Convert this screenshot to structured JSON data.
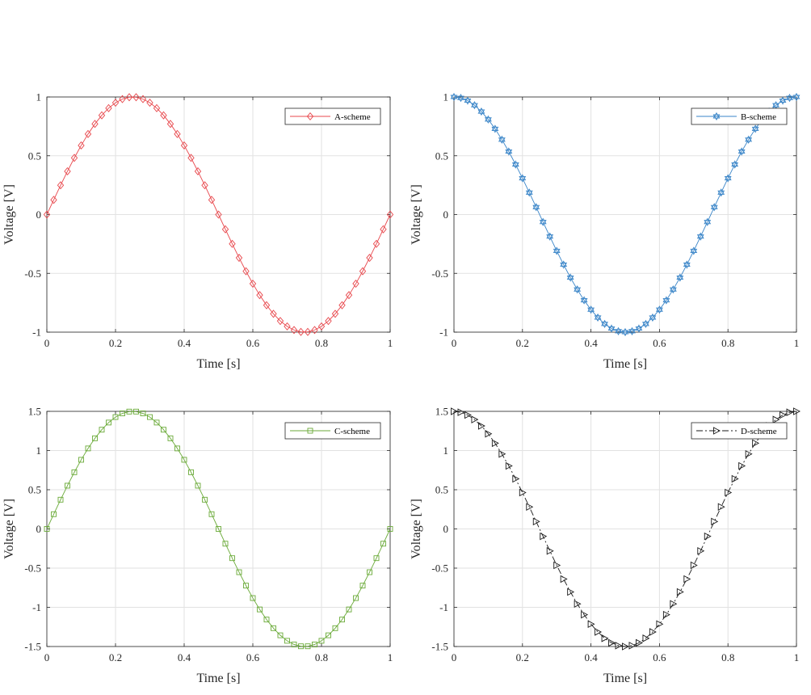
{
  "panels": [
    {
      "legend": "A-scheme",
      "xlabel": "Time [s]",
      "ylabel": "Voltage [V]",
      "color": "#e8474c",
      "marker": "diamond",
      "line": "solid"
    },
    {
      "legend": "B-scheme",
      "xlabel": "Time [s]",
      "ylabel": "Voltage [V]",
      "color": "#3a85c8",
      "marker": "hexagram",
      "line": "solid"
    },
    {
      "legend": "C-scheme",
      "xlabel": "Time [s]",
      "ylabel": "Voltage [V]",
      "color": "#6aaa38",
      "marker": "square",
      "line": "solid"
    },
    {
      "legend": "D-scheme",
      "xlabel": "Time [s]",
      "ylabel": "Voltage [V]",
      "color": "#1a1a1a",
      "marker": "triangle-right",
      "line": "dashdot"
    }
  ],
  "chart_data": [
    {
      "type": "line",
      "xlabel": "Time [s]",
      "ylabel": "Voltage [V]",
      "xlim": [
        0,
        1
      ],
      "ylim": [
        -1,
        1
      ],
      "xticks": [
        "0",
        "0.2",
        "0.4",
        "0.6",
        "0.8",
        "1"
      ],
      "yticks": [
        "-1",
        "-0.5",
        "0",
        "0.5",
        "1"
      ],
      "grid": true,
      "legend_position": "top-right",
      "x": [
        0,
        0.02,
        0.04,
        0.06,
        0.08,
        0.1,
        0.12,
        0.14,
        0.16,
        0.18,
        0.2,
        0.22,
        0.24,
        0.26,
        0.28,
        0.3,
        0.32,
        0.34,
        0.36,
        0.38,
        0.4,
        0.42,
        0.44,
        0.46,
        0.48,
        0.5,
        0.52,
        0.54,
        0.56,
        0.58,
        0.6,
        0.62,
        0.64,
        0.66,
        0.68,
        0.7,
        0.72,
        0.74,
        0.76,
        0.78,
        0.8,
        0.82,
        0.84,
        0.86,
        0.88,
        0.9,
        0.92,
        0.94,
        0.96,
        0.98,
        1
      ],
      "series": [
        {
          "name": "A-scheme",
          "values": [
            0,
            0.125,
            0.249,
            0.368,
            0.482,
            0.588,
            0.685,
            0.771,
            0.844,
            0.905,
            0.951,
            0.982,
            0.998,
            0.998,
            0.982,
            0.951,
            0.905,
            0.844,
            0.771,
            0.685,
            0.588,
            0.482,
            0.368,
            0.249,
            0.125,
            0,
            -0.125,
            -0.249,
            -0.368,
            -0.482,
            -0.588,
            -0.685,
            -0.771,
            -0.844,
            -0.905,
            -0.951,
            -0.982,
            -0.998,
            -0.998,
            -0.982,
            -0.951,
            -0.905,
            -0.844,
            -0.771,
            -0.685,
            -0.588,
            -0.482,
            -0.368,
            -0.249,
            -0.125,
            0
          ]
        }
      ]
    },
    {
      "type": "line",
      "xlabel": "Time [s]",
      "ylabel": "Voltage [V]",
      "xlim": [
        0,
        1
      ],
      "ylim": [
        -1,
        1
      ],
      "xticks": [
        "0",
        "0.2",
        "0.4",
        "0.6",
        "0.8",
        "1"
      ],
      "yticks": [
        "-1",
        "-0.5",
        "0",
        "0.5",
        "1"
      ],
      "grid": true,
      "legend_position": "top-right",
      "x": [
        0,
        0.02,
        0.04,
        0.06,
        0.08,
        0.1,
        0.12,
        0.14,
        0.16,
        0.18,
        0.2,
        0.22,
        0.24,
        0.26,
        0.28,
        0.3,
        0.32,
        0.34,
        0.36,
        0.38,
        0.4,
        0.42,
        0.44,
        0.46,
        0.48,
        0.5,
        0.52,
        0.54,
        0.56,
        0.58,
        0.6,
        0.62,
        0.64,
        0.66,
        0.68,
        0.7,
        0.72,
        0.74,
        0.76,
        0.78,
        0.8,
        0.82,
        0.84,
        0.86,
        0.88,
        0.9,
        0.92,
        0.94,
        0.96,
        0.98,
        1
      ],
      "series": [
        {
          "name": "B-scheme",
          "values": [
            1,
            0.992,
            0.969,
            0.93,
            0.876,
            0.809,
            0.729,
            0.637,
            0.536,
            0.426,
            0.309,
            0.187,
            0.063,
            -0.063,
            -0.187,
            -0.309,
            -0.426,
            -0.536,
            -0.637,
            -0.729,
            -0.809,
            -0.876,
            -0.93,
            -0.969,
            -0.992,
            -1,
            -0.992,
            -0.969,
            -0.93,
            -0.876,
            -0.809,
            -0.729,
            -0.637,
            -0.536,
            -0.426,
            -0.309,
            -0.187,
            -0.063,
            0.063,
            0.187,
            0.309,
            0.426,
            0.536,
            0.637,
            0.729,
            0.809,
            0.876,
            0.93,
            0.969,
            0.992,
            1
          ]
        }
      ]
    },
    {
      "type": "line",
      "xlabel": "Time [s]",
      "ylabel": "Voltage [V]",
      "xlim": [
        0,
        1
      ],
      "ylim": [
        -1.5,
        1.5
      ],
      "xticks": [
        "0",
        "0.2",
        "0.4",
        "0.6",
        "0.8",
        "1"
      ],
      "yticks": [
        "-1.5",
        "-1",
        "-0.5",
        "0",
        "0.5",
        "1",
        "1.5"
      ],
      "grid": true,
      "legend_position": "top-right",
      "x": [
        0,
        0.02,
        0.04,
        0.06,
        0.08,
        0.1,
        0.12,
        0.14,
        0.16,
        0.18,
        0.2,
        0.22,
        0.24,
        0.26,
        0.28,
        0.3,
        0.32,
        0.34,
        0.36,
        0.38,
        0.4,
        0.42,
        0.44,
        0.46,
        0.48,
        0.5,
        0.52,
        0.54,
        0.56,
        0.58,
        0.6,
        0.62,
        0.64,
        0.66,
        0.68,
        0.7,
        0.72,
        0.74,
        0.76,
        0.78,
        0.8,
        0.82,
        0.84,
        0.86,
        0.88,
        0.9,
        0.92,
        0.94,
        0.96,
        0.98,
        1
      ],
      "series": [
        {
          "name": "C-scheme",
          "values": [
            0,
            0.188,
            0.373,
            0.552,
            0.723,
            0.882,
            1.027,
            1.156,
            1.266,
            1.357,
            1.427,
            1.474,
            1.497,
            1.497,
            1.474,
            1.427,
            1.357,
            1.266,
            1.156,
            1.027,
            0.882,
            0.723,
            0.552,
            0.373,
            0.188,
            0,
            -0.188,
            -0.373,
            -0.552,
            -0.723,
            -0.882,
            -1.027,
            -1.156,
            -1.266,
            -1.357,
            -1.427,
            -1.474,
            -1.497,
            -1.497,
            -1.474,
            -1.427,
            -1.357,
            -1.266,
            -1.156,
            -1.027,
            -0.882,
            -0.723,
            -0.552,
            -0.373,
            -0.188,
            0
          ]
        }
      ]
    },
    {
      "type": "line",
      "xlabel": "Time [s]",
      "ylabel": "Voltage [V]",
      "xlim": [
        0,
        1
      ],
      "ylim": [
        -1.5,
        1.5
      ],
      "xticks": [
        "0",
        "0.2",
        "0.4",
        "0.6",
        "0.8",
        "1"
      ],
      "yticks": [
        "-1.5",
        "-1",
        "-0.5",
        "0",
        "0.5",
        "1",
        "1.5"
      ],
      "grid": true,
      "legend_position": "top-right",
      "x": [
        0,
        0.02,
        0.04,
        0.06,
        0.08,
        0.1,
        0.12,
        0.14,
        0.16,
        0.18,
        0.2,
        0.22,
        0.24,
        0.26,
        0.28,
        0.3,
        0.32,
        0.34,
        0.36,
        0.38,
        0.4,
        0.42,
        0.44,
        0.46,
        0.48,
        0.5,
        0.52,
        0.54,
        0.56,
        0.58,
        0.6,
        0.62,
        0.64,
        0.66,
        0.68,
        0.7,
        0.72,
        0.74,
        0.76,
        0.78,
        0.8,
        0.82,
        0.84,
        0.86,
        0.88,
        0.9,
        0.92,
        0.94,
        0.96,
        0.98,
        1
      ],
      "series": [
        {
          "name": "D-scheme",
          "values": [
            1.5,
            1.488,
            1.453,
            1.395,
            1.314,
            1.214,
            1.094,
            0.956,
            0.804,
            0.639,
            0.464,
            0.281,
            0.094,
            -0.094,
            -0.281,
            -0.464,
            -0.639,
            -0.804,
            -0.956,
            -1.094,
            -1.214,
            -1.314,
            -1.395,
            -1.453,
            -1.488,
            -1.5,
            -1.488,
            -1.453,
            -1.395,
            -1.314,
            -1.214,
            -1.094,
            -0.956,
            -0.804,
            -0.639,
            -0.464,
            -0.281,
            -0.094,
            0.094,
            0.281,
            0.464,
            0.639,
            0.804,
            0.956,
            1.094,
            1.214,
            1.314,
            1.395,
            1.453,
            1.488,
            1.5
          ]
        }
      ]
    }
  ]
}
